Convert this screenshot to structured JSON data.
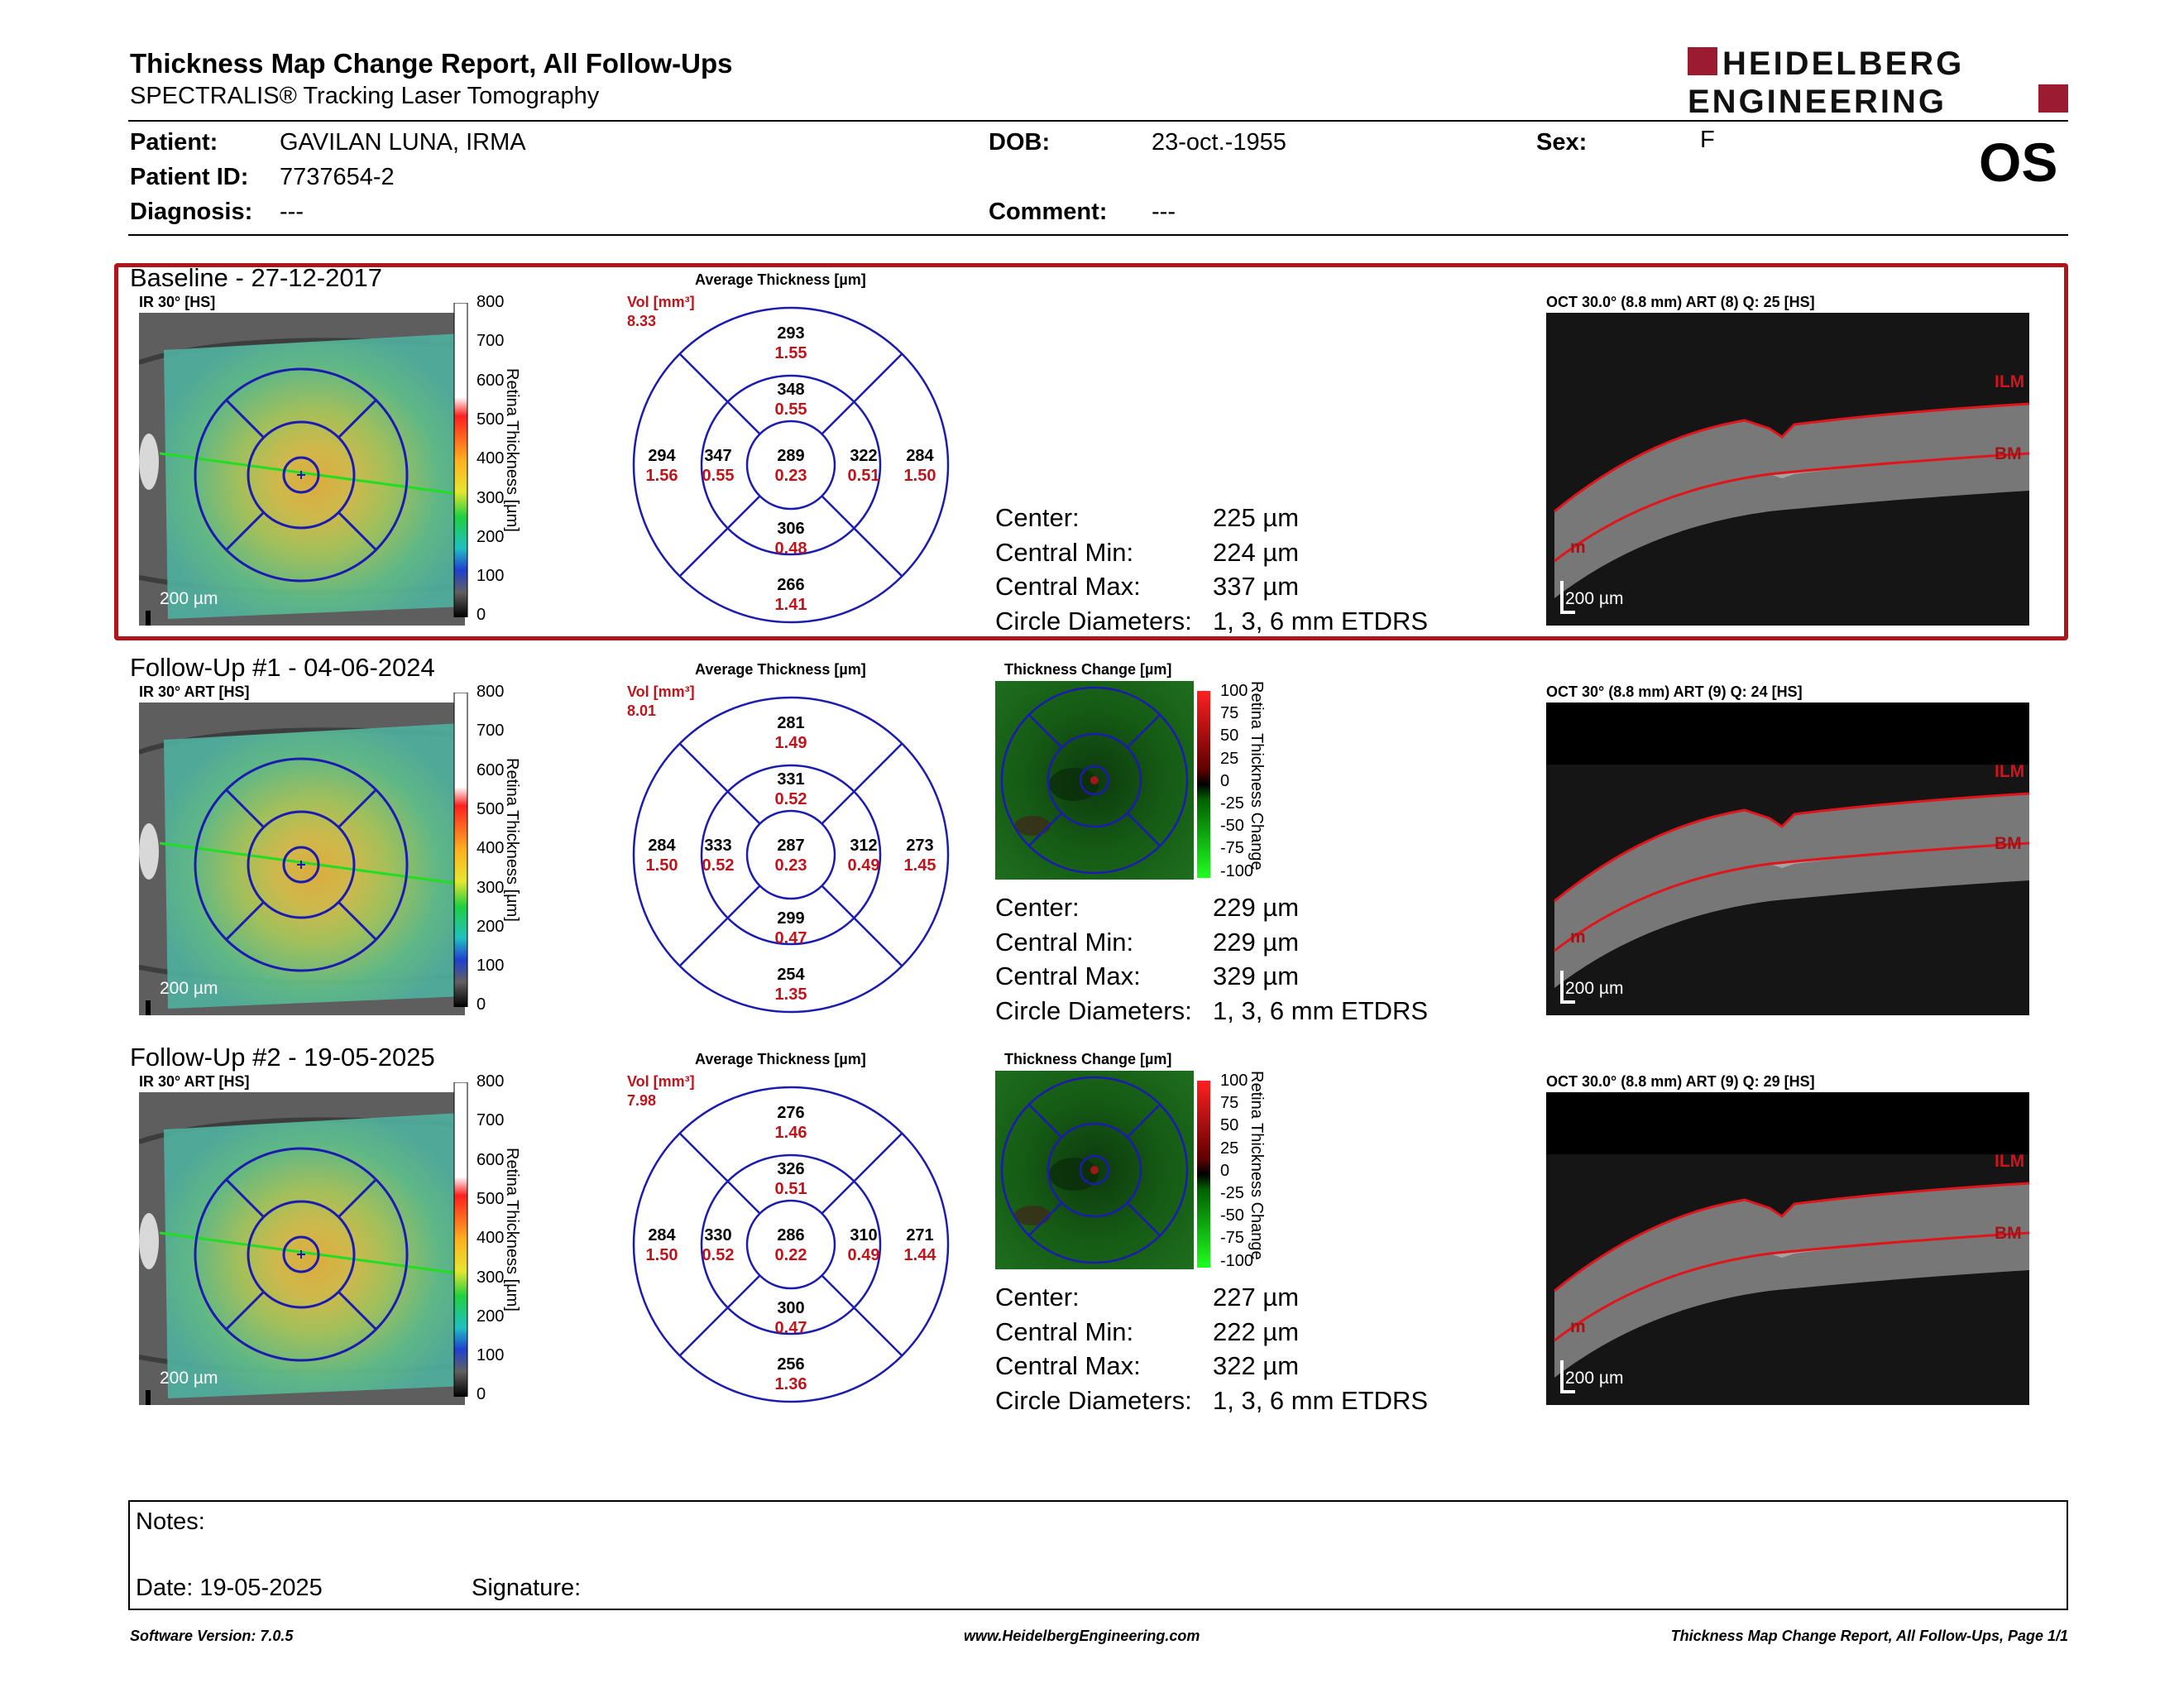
{
  "header": {
    "title": "Thickness Map Change Report, All Follow-Ups",
    "subtitle": "SPECTRALIS® Tracking Laser Tomography",
    "logo_line1": "HEIDELBERG",
    "logo_line2": "ENGINEERING",
    "eye": "OS"
  },
  "patient": {
    "patient_label": "Patient:",
    "patient_value": "GAVILAN LUNA, IRMA",
    "id_label": "Patient ID:",
    "id_value": "7737654-2",
    "diagnosis_label": "Diagnosis:",
    "diagnosis_value": "---",
    "dob_label": "DOB:",
    "dob_value": "23-oct.-1955",
    "comment_label": "Comment:",
    "comment_value": "---",
    "sex_label": "Sex:",
    "sex_value": "F"
  },
  "exams": [
    {
      "title": "Baseline - 27-12-2017",
      "ir_label": "IR 30° [HS]",
      "scale_ticks": [
        "800",
        "700",
        "600",
        "500",
        "400",
        "300",
        "200",
        "100",
        "0"
      ],
      "scale_axis": "Retina Thickness [µm]",
      "scalebar": "200 µm",
      "avg_title": "Average Thickness [µm]",
      "vol_label": "Vol [mm³]",
      "vol_value": "8.33",
      "grid": {
        "top_outer": [
          "293",
          "1.55"
        ],
        "top_inner": [
          "348",
          "0.55"
        ],
        "left_outer": [
          "294",
          "1.56"
        ],
        "left_inner": [
          "347",
          "0.55"
        ],
        "center": [
          "289",
          "0.23"
        ],
        "right_inner": [
          "322",
          "0.51"
        ],
        "right_outer": [
          "284",
          "1.50"
        ],
        "bottom_inner": [
          "306",
          "0.48"
        ],
        "bottom_outer": [
          "266",
          "1.41"
        ]
      },
      "stats": {
        "center_label": "Center:",
        "center_value": "225 µm",
        "min_label": "Central Min:",
        "min_value": "224 µm",
        "max_label": "Central Max:",
        "max_value": "337 µm",
        "diam_label": "Circle Diameters:",
        "diam_value": "1, 3, 6 mm ETDRS"
      },
      "oct_label": "OCT 30.0° (8.8 mm) ART (8) Q: 25 [HS]",
      "oct_scalebar": "200 µm",
      "ilm": "ILM",
      "bm": "BM",
      "m": "m"
    },
    {
      "title": "Follow-Up #1 - 04-06-2024",
      "ir_label": "IR 30° ART [HS]",
      "scale_ticks": [
        "800",
        "700",
        "600",
        "500",
        "400",
        "300",
        "200",
        "100",
        "0"
      ],
      "scale_axis": "Retina Thickness [µm]",
      "scalebar": "200 µm",
      "avg_title": "Average Thickness [µm]",
      "vol_label": "Vol [mm³]",
      "vol_value": "8.01",
      "grid": {
        "top_outer": [
          "281",
          "1.49"
        ],
        "top_inner": [
          "331",
          "0.52"
        ],
        "left_outer": [
          "284",
          "1.50"
        ],
        "left_inner": [
          "333",
          "0.52"
        ],
        "center": [
          "287",
          "0.23"
        ],
        "right_inner": [
          "312",
          "0.49"
        ],
        "right_outer": [
          "273",
          "1.45"
        ],
        "bottom_inner": [
          "299",
          "0.47"
        ],
        "bottom_outer": [
          "254",
          "1.35"
        ]
      },
      "change_title": "Thickness Change [µm]",
      "change_ticks": [
        "100",
        "75",
        "50",
        "25",
        "0",
        "-25",
        "-50",
        "-75",
        "-100"
      ],
      "change_axis": "Retina Thickness Change",
      "stats": {
        "center_label": "Center:",
        "center_value": "229 µm",
        "min_label": "Central Min:",
        "min_value": "229 µm",
        "max_label": "Central Max:",
        "max_value": "329 µm",
        "diam_label": "Circle Diameters:",
        "diam_value": "1, 3, 6 mm ETDRS"
      },
      "oct_label": "OCT 30° (8.8 mm) ART (9) Q: 24 [HS]",
      "oct_scalebar": "200 µm",
      "ilm": "ILM",
      "bm": "BM",
      "m": "m"
    },
    {
      "title": "Follow-Up #2 - 19-05-2025",
      "ir_label": "IR 30° ART [HS]",
      "scale_ticks": [
        "800",
        "700",
        "600",
        "500",
        "400",
        "300",
        "200",
        "100",
        "0"
      ],
      "scale_axis": "Retina Thickness [µm]",
      "scalebar": "200 µm",
      "avg_title": "Average Thickness [µm]",
      "vol_label": "Vol [mm³]",
      "vol_value": "7.98",
      "grid": {
        "top_outer": [
          "276",
          "1.46"
        ],
        "top_inner": [
          "326",
          "0.51"
        ],
        "left_outer": [
          "284",
          "1.50"
        ],
        "left_inner": [
          "330",
          "0.52"
        ],
        "center": [
          "286",
          "0.22"
        ],
        "right_inner": [
          "310",
          "0.49"
        ],
        "right_outer": [
          "271",
          "1.44"
        ],
        "bottom_inner": [
          "300",
          "0.47"
        ],
        "bottom_outer": [
          "256",
          "1.36"
        ]
      },
      "change_title": "Thickness Change [µm]",
      "change_ticks": [
        "100",
        "75",
        "50",
        "25",
        "0",
        "-25",
        "-50",
        "-75",
        "-100"
      ],
      "change_axis": "Retina Thickness Change",
      "stats": {
        "center_label": "Center:",
        "center_value": "227 µm",
        "min_label": "Central Min:",
        "min_value": "222 µm",
        "max_label": "Central Max:",
        "max_value": "322 µm",
        "diam_label": "Circle Diameters:",
        "diam_value": "1, 3, 6 mm ETDRS"
      },
      "oct_label": "OCT 30.0° (8.8 mm) ART (9) Q: 29 [HS]",
      "oct_scalebar": "200 µm",
      "ilm": "ILM",
      "bm": "BM",
      "m": "m"
    }
  ],
  "notes": {
    "notes_label": "Notes:",
    "date_label": "Date: 19-05-2025",
    "signature_label": "Signature:"
  },
  "footer": {
    "software": "Software Version: 7.0.5",
    "website": "www.HeidelbergEngineering.com",
    "page": "Thickness Map Change Report, All Follow-Ups, Page 1/1"
  },
  "colors": {
    "brand_red": "#9b1b30",
    "frame_red": "#b0151b",
    "value_red": "#c0141b",
    "grid_blue": "#1b1bb0"
  }
}
